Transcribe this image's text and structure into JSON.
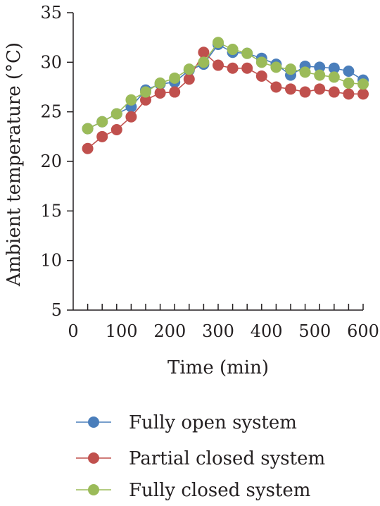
{
  "chart_data": {
    "type": "line",
    "title": "",
    "xlabel": "Time (min)",
    "ylabel": "Ambient temperature (°C)",
    "xlim": [
      0,
      600
    ],
    "ylim": [
      5,
      35
    ],
    "xticks": [
      0,
      100,
      200,
      300,
      400,
      500,
      600
    ],
    "yticks": [
      5,
      10,
      15,
      20,
      25,
      30,
      35
    ],
    "x_minor_step": 30,
    "grid": false,
    "legend_position": "bottom",
    "x": [
      30,
      60,
      90,
      120,
      150,
      180,
      210,
      240,
      270,
      300,
      330,
      360,
      390,
      420,
      450,
      480,
      510,
      540,
      570,
      600
    ],
    "series": [
      {
        "name": "Fully open system",
        "color": "#4a7ebb",
        "values": [
          23.3,
          24.0,
          24.8,
          25.5,
          27.2,
          27.8,
          28.0,
          29.2,
          29.8,
          31.8,
          31.0,
          30.9,
          30.4,
          29.8,
          28.7,
          29.6,
          29.5,
          29.4,
          29.1,
          28.2
        ]
      },
      {
        "name": "Partial closed system",
        "color": "#c0504d",
        "values": [
          21.3,
          22.5,
          23.2,
          24.5,
          26.2,
          26.9,
          27.0,
          28.3,
          31.0,
          29.7,
          29.4,
          29.4,
          28.6,
          27.5,
          27.3,
          27.0,
          27.3,
          27.0,
          26.8,
          26.8
        ]
      },
      {
        "name": "Fully closed system",
        "color": "#9bbb59",
        "values": [
          23.3,
          24.0,
          24.8,
          26.2,
          27.0,
          27.9,
          28.4,
          29.3,
          30.0,
          32.0,
          31.3,
          30.9,
          30.0,
          29.5,
          29.3,
          29.0,
          28.7,
          28.5,
          27.9,
          27.8
        ]
      }
    ]
  }
}
